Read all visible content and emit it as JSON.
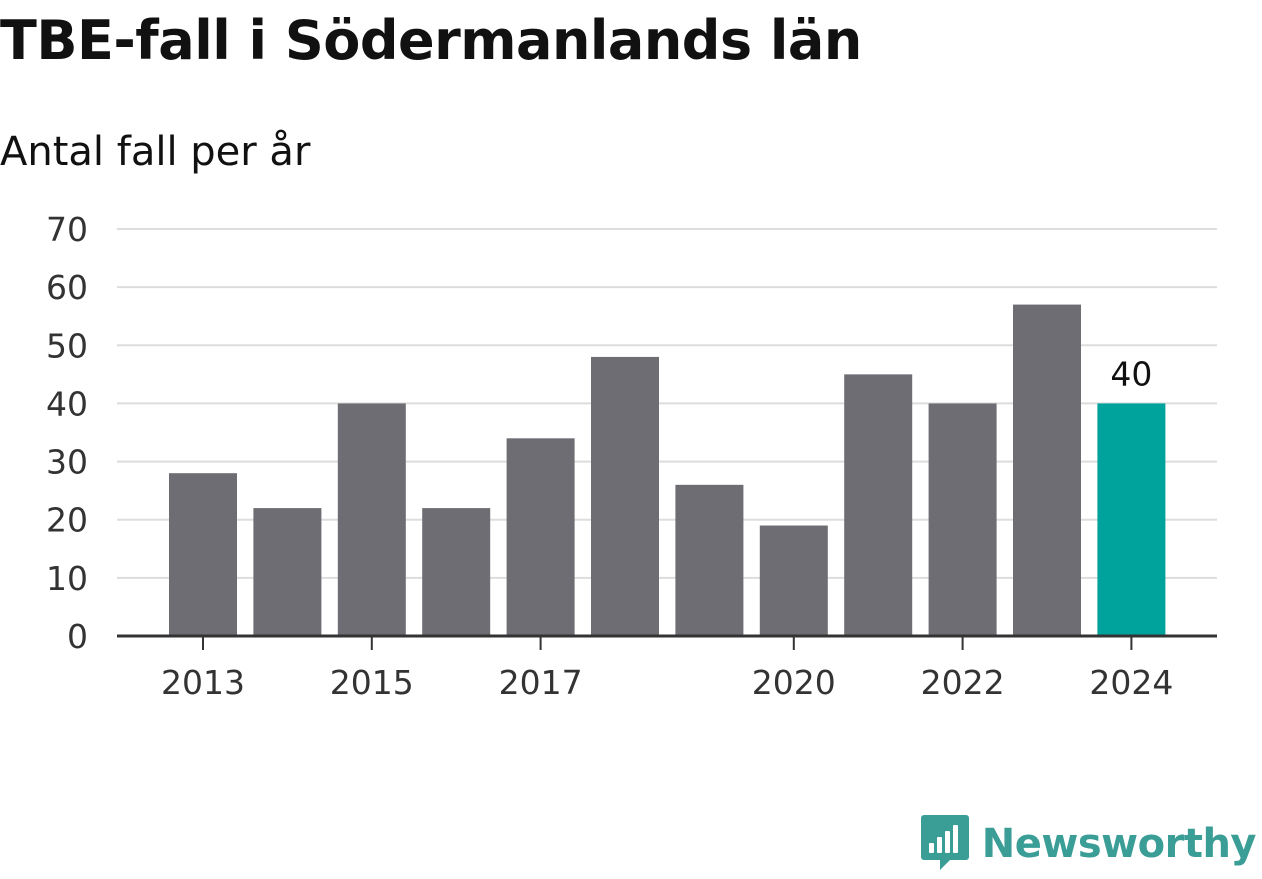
{
  "colors": {
    "bar": "#6e6d73",
    "highlight": "#00a39b",
    "grid": "#dddddd",
    "axis": "#333333",
    "brand": "#3a9e96"
  },
  "brand": {
    "name": "Newsworthy",
    "icon": "newsworthy-logo-icon"
  },
  "chart_data": {
    "type": "bar",
    "title": "TBE-fall i Södermanlands län",
    "subtitle": "Antal fall per år",
    "xlabel": "",
    "ylabel": "",
    "categories": [
      "2013",
      "2014",
      "2015",
      "2016",
      "2017",
      "2018",
      "2019",
      "2020",
      "2021",
      "2022",
      "2023",
      "2024"
    ],
    "values": [
      28,
      22,
      40,
      22,
      34,
      48,
      26,
      19,
      45,
      40,
      57,
      40
    ],
    "highlight_index": 11,
    "value_labels": [
      {
        "index": 11,
        "text": "40"
      }
    ],
    "x_tick_labels": [
      "2013",
      "2015",
      "2017",
      "2020",
      "2022",
      "2024"
    ],
    "y_ticks": [
      0,
      10,
      20,
      30,
      40,
      50,
      60,
      70
    ],
    "ylim": [
      0,
      70
    ],
    "grid": true,
    "legend": "none"
  }
}
